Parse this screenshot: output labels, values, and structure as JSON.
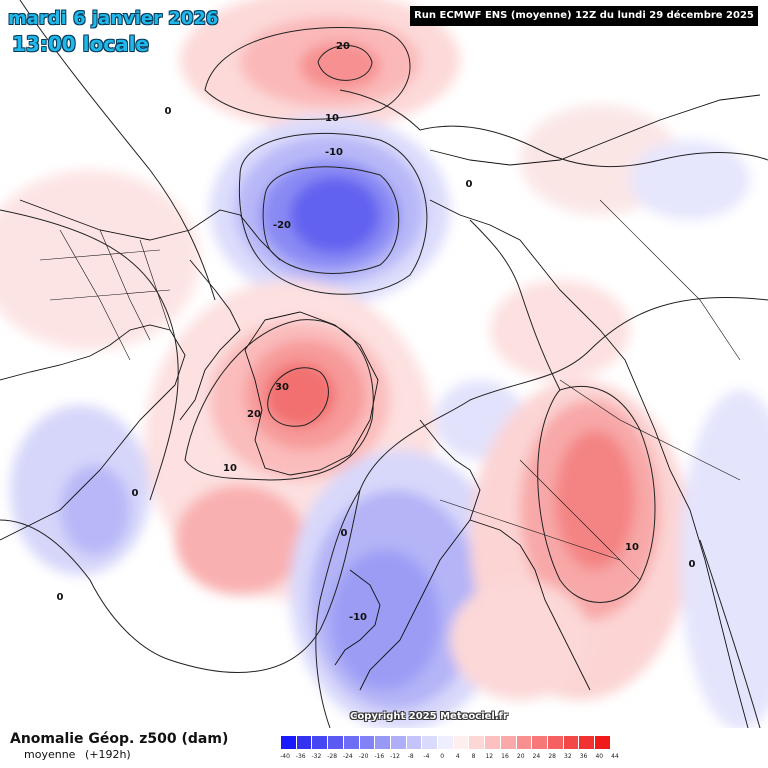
{
  "header": {
    "date": "mardi 6 janvier 2026",
    "time": "13:00 locale",
    "run_info": "Run ECMWF ENS (moyenne) 12Z du lundi 29 décembre 2025"
  },
  "map": {
    "contour_labels": [
      "20",
      "10",
      "0",
      "-10",
      "-20",
      "0",
      "30",
      "20",
      "10",
      "0",
      "0",
      "-10",
      "10",
      "0",
      "0"
    ],
    "copyright": "Copyright 2025 Meteociel.fr"
  },
  "legend": {
    "title": "Anomalie Géop. z500 (dam)",
    "subtitle": "moyenne",
    "lead": "(+192h)",
    "values": [
      "-40",
      "-36",
      "-32",
      "-28",
      "-24",
      "-20",
      "-16",
      "-12",
      "-8",
      "-4",
      "0",
      "4",
      "8",
      "12",
      "16",
      "20",
      "24",
      "28",
      "32",
      "36",
      "40",
      "44"
    ],
    "colors": [
      "#1a1aff",
      "#3232f0",
      "#4646f2",
      "#5a5af3",
      "#6e6ef5",
      "#8282f6",
      "#9898f7",
      "#aeaef9",
      "#c4c4fa",
      "#dadafc",
      "#eeeefe",
      "#feeeee",
      "#fdd6d6",
      "#fcc0c0",
      "#fba8a8",
      "#f99090",
      "#f77878",
      "#f56060",
      "#f34848",
      "#f23232",
      "#f01a1a",
      "#ee0000"
    ]
  }
}
